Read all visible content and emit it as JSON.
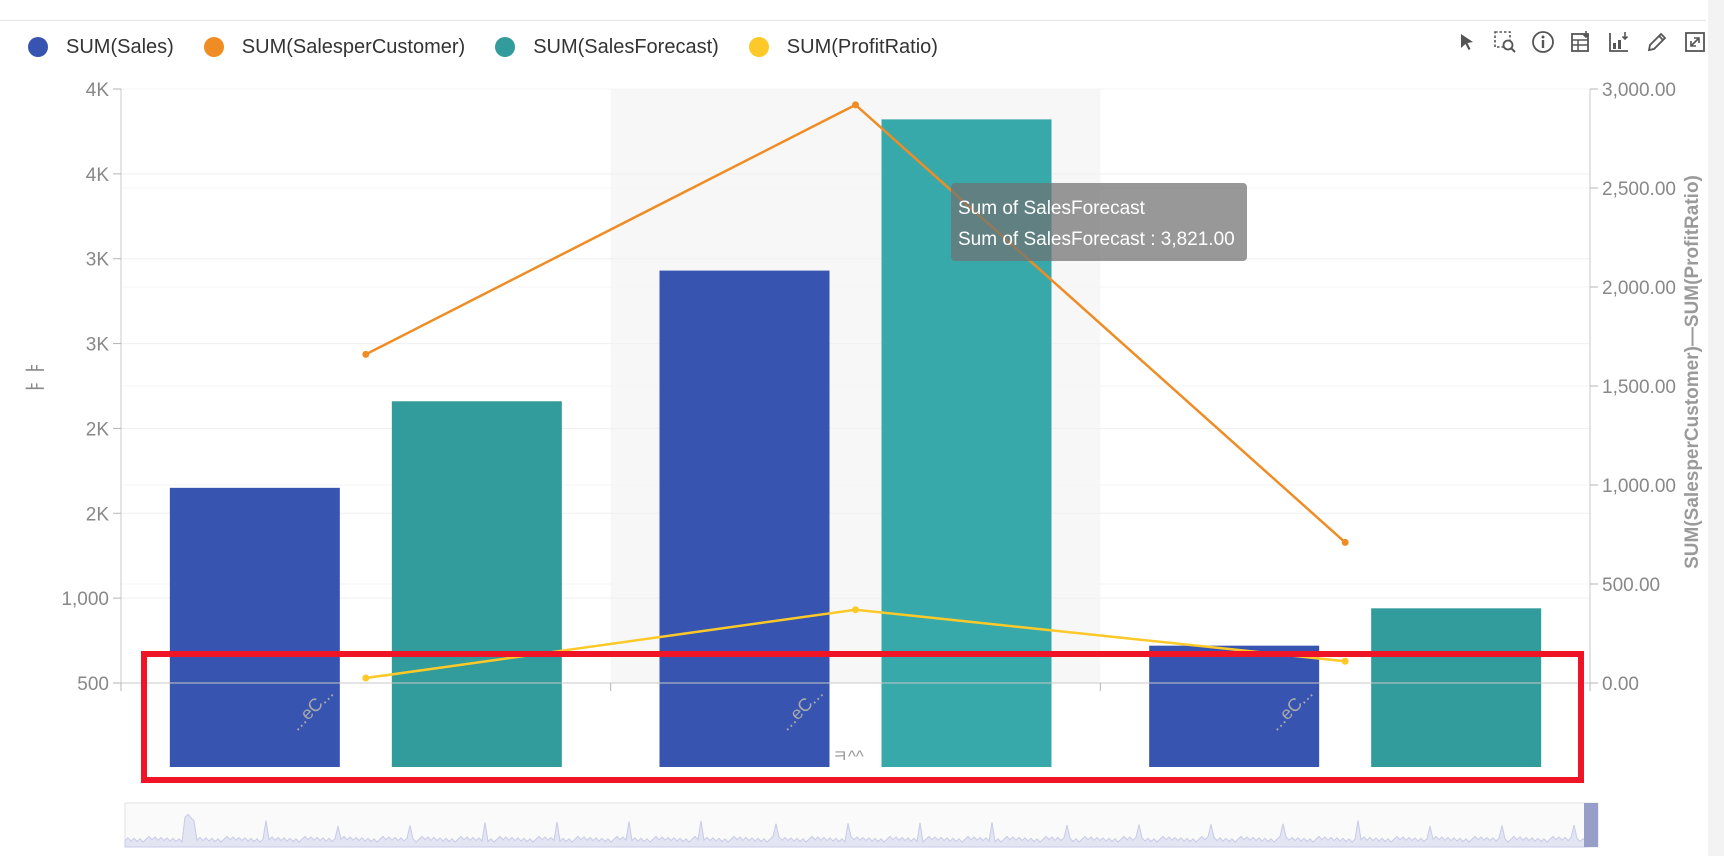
{
  "legend": {
    "items": [
      {
        "label": "SUM(Sales)",
        "color": "#3754b0"
      },
      {
        "label": "SUM(SalesperCustomer)",
        "color": "#ef8c24"
      },
      {
        "label": "SUM(SalesForecast)",
        "color": "#329b9b"
      },
      {
        "label": "SUM(ProfitRatio)",
        "color": "#fcc928"
      }
    ]
  },
  "toolbar": {
    "icons": [
      "pointer-icon",
      "zoom-select-icon",
      "info-icon",
      "export-data-icon",
      "export-chart-icon",
      "edit-icon",
      "fullscreen-icon"
    ]
  },
  "tooltip": {
    "title": "Sum of SalesForecast",
    "line": "Sum of SalesForecast : 3,821.00"
  },
  "chart_data": {
    "type": "bar",
    "categories": [
      "...eC...",
      "...eC...",
      "...eC..."
    ],
    "xlabel": "ㅋ^^",
    "ylabel": "ㅑㅑ",
    "y2label": "SUM(SalesperCustomer)—SUM(ProfitRatio)",
    "left_axis": {
      "ticks": [
        500,
        1000,
        1500,
        2000,
        2500,
        3000,
        3500,
        4000
      ],
      "tick_labels": [
        "500",
        "1,000",
        "2K",
        "2K",
        "3K",
        "3K",
        "4K",
        "4K"
      ],
      "range": [
        500,
        4000
      ]
    },
    "right_axis": {
      "ticks": [
        0,
        500,
        1000,
        1500,
        2000,
        2500,
        3000
      ],
      "tick_labels": [
        "0.00",
        "500.00",
        "1,000.00",
        "1,500.00",
        "2,000.00",
        "2,500.00",
        "3,000.00"
      ],
      "range": [
        0,
        3000
      ]
    },
    "series": [
      {
        "name": "SUM(Sales)",
        "kind": "bar",
        "axis": "left",
        "color": "#3754b0",
        "values": [
          1650,
          2930,
          720
        ]
      },
      {
        "name": "SUM(SalesForecast)",
        "kind": "bar",
        "axis": "left",
        "color": "#329b9b",
        "values": [
          2160,
          3821,
          940
        ]
      },
      {
        "name": "SUM(SalesperCustomer)",
        "kind": "line",
        "axis": "right",
        "color": "#ef8c24",
        "values": [
          1660,
          2920,
          710
        ]
      },
      {
        "name": "SUM(ProfitRatio)",
        "kind": "line",
        "axis": "right",
        "color": "#fcc928",
        "values": [
          25,
          370,
          110
        ]
      }
    ],
    "highlighted_category": 1,
    "grid": true,
    "legend_position": "top-left"
  }
}
